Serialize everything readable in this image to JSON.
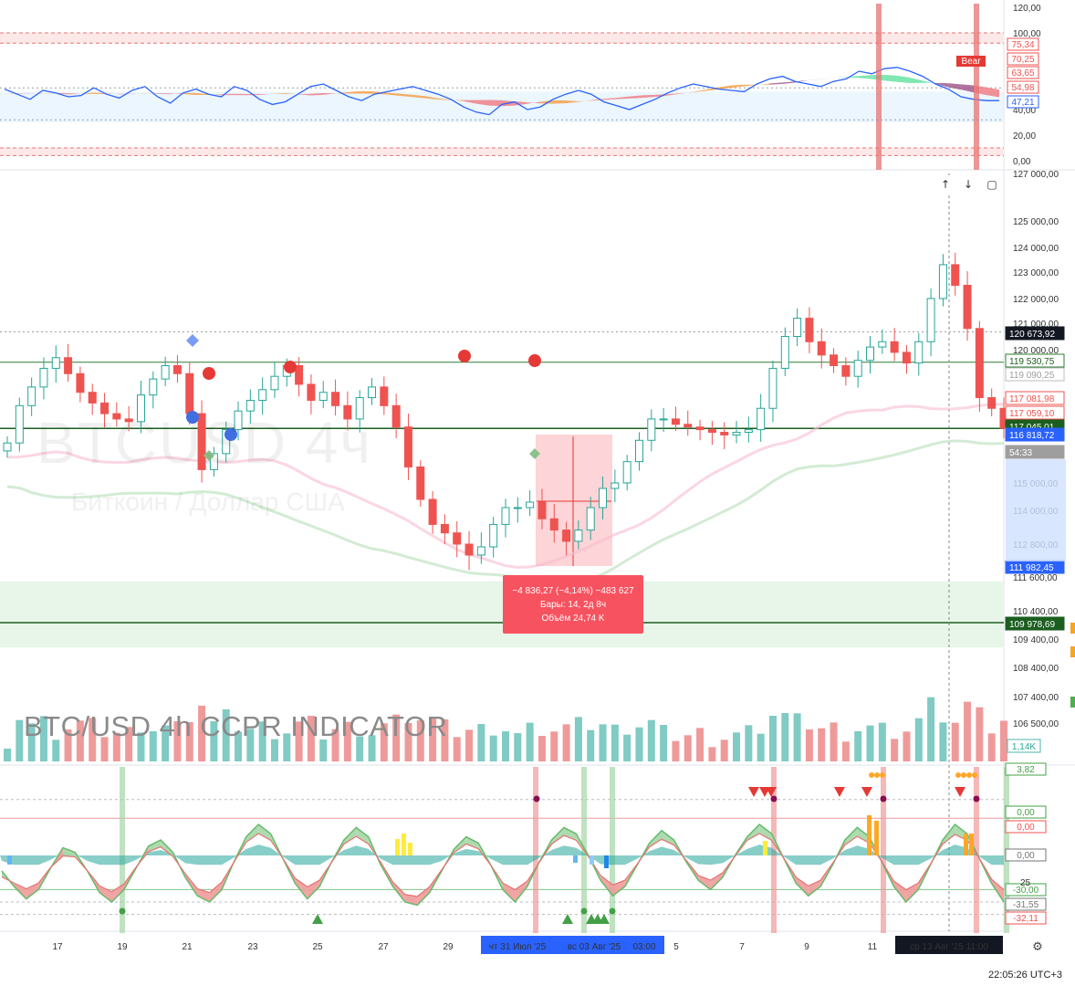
{
  "title_overlay": "BTC/USD 4h   CCPR INDICATOR",
  "watermark": {
    "main": "BTCUSD 4ч",
    "sub": "Биткоин / Доллар США"
  },
  "toolbar": {
    "up_icon": "arrow-up-icon",
    "down_icon": "arrow-down-icon",
    "fullscreen_icon": "fullscreen-icon",
    "settings_icon": "gear-icon"
  },
  "range_measure": {
    "line1": "−4 836,27 (−4,14%) −483 627",
    "line2": "Бары: 14, 2д 8ч",
    "line3": "Объём 24,74 K"
  },
  "clock": "22:05:26 UTC+3",
  "colors": {
    "up": "#26a69a",
    "down": "#ef5350",
    "accent": "#2962ff"
  },
  "chart_data": [
    {
      "type": "line",
      "pane": "oscillator",
      "yticks": [
        "120,00",
        "100,00",
        "40,00",
        "20,00",
        "0,00"
      ],
      "badges": [
        {
          "text": "75,34",
          "kind": "red-outline"
        },
        {
          "text": "70,25",
          "kind": "red-outline"
        },
        {
          "text": "63,65",
          "kind": "red-outline"
        },
        {
          "text": "54,98",
          "kind": "red-outline"
        },
        {
          "text": "47,21",
          "kind": "blue-outline"
        }
      ],
      "marker": "Bear",
      "ylim": [
        0,
        120
      ],
      "series": [
        {
          "values": [
            56,
            52,
            48,
            55,
            53,
            50,
            51,
            57,
            52,
            49,
            55,
            58,
            50,
            45,
            53,
            56,
            52,
            50,
            58,
            55,
            48,
            44,
            46,
            52,
            58,
            60,
            55,
            50,
            47,
            52,
            54,
            56,
            58,
            55,
            52,
            48,
            42,
            38,
            36,
            44,
            46,
            40,
            42,
            48,
            52,
            55,
            52,
            46,
            43,
            40,
            44,
            48,
            53,
            57,
            60,
            58,
            56,
            55,
            54,
            60,
            64,
            66,
            62,
            60,
            58,
            62,
            64,
            70,
            68,
            72,
            73,
            70,
            66,
            60,
            56,
            50,
            48,
            47,
            47
          ]
        }
      ]
    },
    {
      "type": "candlestick",
      "pane": "price",
      "yticks": [
        "127 000,00",
        "125 000,00",
        "124 000,00",
        "123 000,00",
        "122 000,00",
        "121 000,00",
        "120 000,00",
        "115 000,00",
        "114 000,00",
        "112 800,00",
        "111 600,00",
        "110 400,00",
        "109 400,00",
        "108 400,00",
        "107 400,00",
        "106 500,00"
      ],
      "ylim": [
        105800,
        127000
      ],
      "price_badges": [
        {
          "text": "120 673,92",
          "kind": "dark"
        },
        {
          "text": "119 530,75",
          "kind": "green-outline"
        },
        {
          "text": "119 090,25",
          "kind": "gray-outline"
        },
        {
          "text": "117 081,98",
          "kind": "red-outline"
        },
        {
          "text": "117 059,10",
          "kind": "red-outline"
        },
        {
          "text": "117 045,01",
          "kind": "green-solid"
        },
        {
          "text": "116 818,72",
          "kind": "blue-solid"
        },
        {
          "text": "54:33",
          "kind": "gray-solid"
        },
        {
          "text": "111 982,45",
          "kind": "blue-solid"
        },
        {
          "text": "109 978,69",
          "kind": "green-solid"
        }
      ],
      "volume_badge": "1,14K",
      "series": [
        {
          "name": "close",
          "values": [
            116500,
            117900,
            118600,
            119300,
            119700,
            119100,
            118400,
            118000,
            117600,
            117400,
            117300,
            118300,
            118900,
            119400,
            119100,
            117600,
            115500,
            116100,
            117000,
            117700,
            118100,
            118500,
            119000,
            119400,
            118700,
            118100,
            118400,
            117900,
            117400,
            118200,
            118600,
            117900,
            117100,
            115600,
            114400,
            113500,
            113200,
            112800,
            112400,
            112700,
            113500,
            114100,
            114100,
            114300,
            113700,
            113300,
            112900,
            113300,
            114100,
            114800,
            115000,
            115800,
            116600,
            117400,
            117400,
            117200,
            117100,
            117000,
            116900,
            116800,
            116900,
            117000,
            117800,
            119300,
            120500,
            121200,
            120300,
            119800,
            119400,
            119000,
            119600,
            120100,
            120300,
            119900,
            119500,
            120300,
            122000,
            123300,
            122500,
            120800,
            118200,
            117800,
            117050
          ]
        }
      ]
    },
    {
      "type": "area",
      "pane": "ccpr",
      "yticks": [],
      "badges": [
        {
          "text": "3,82",
          "kind": "green-outline"
        },
        {
          "text": "0,00",
          "kind": "green-outline"
        },
        {
          "text": "0,00",
          "kind": "red-outline"
        },
        {
          "text": "0,00",
          "kind": "gray-outline"
        },
        {
          "text": "-30,00",
          "kind": "green-outline"
        },
        {
          "text": "-31,55",
          "kind": "gray-outline"
        },
        {
          "text": "-32,11",
          "kind": "red-outline"
        }
      ],
      "series": [
        {
          "name": "fast",
          "values": [
            -10,
            -20,
            -28,
            -22,
            -8,
            5,
            2,
            -10,
            -24,
            -30,
            -22,
            -8,
            6,
            10,
            2,
            -14,
            -26,
            -30,
            -22,
            -4,
            12,
            20,
            14,
            -2,
            -18,
            -28,
            -20,
            -4,
            10,
            18,
            12,
            -6,
            -20,
            -30,
            -32,
            -24,
            -10,
            4,
            12,
            8,
            -6,
            -22,
            -30,
            -20,
            -4,
            10,
            18,
            14,
            0,
            -16,
            -26,
            -20,
            -6,
            8,
            16,
            10,
            -4,
            -16,
            -22,
            -14,
            0,
            12,
            20,
            14,
            -2,
            -18,
            -26,
            -20,
            -6,
            10,
            18,
            12,
            -4,
            -20,
            -30,
            -22,
            -6,
            10,
            20,
            14,
            -2,
            -18,
            -30
          ]
        }
      ]
    }
  ],
  "x_axis": {
    "labels": [
      "17",
      "19",
      "21",
      "23",
      "25",
      "27",
      "29",
      "5",
      "7",
      "9",
      "11"
    ],
    "highlight_labels": [
      "чт 31 Июл '25",
      "вс 03 Авг '25",
      "03:00"
    ],
    "dark_label": "ср 13 Авг '25  11:00"
  }
}
